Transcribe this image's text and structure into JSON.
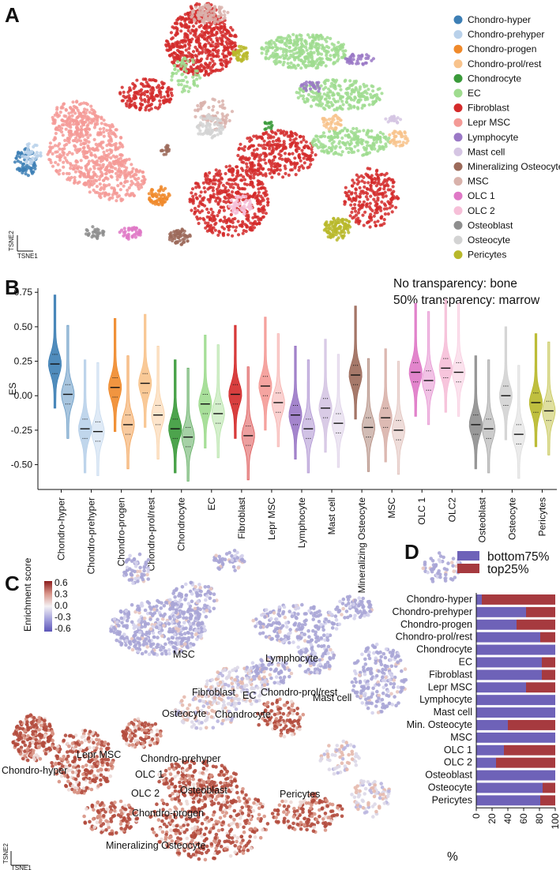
{
  "panels": {
    "a": "A",
    "b": "B",
    "c": "C",
    "d": "D"
  },
  "tsne_axes": {
    "y": "TSNE2",
    "x": "TSNE1"
  },
  "panel_a": {
    "legend": [
      {
        "name": "Chondro-hyper",
        "color": "#3d7fb5"
      },
      {
        "name": "Chondro-prehyper",
        "color": "#b9d1ea"
      },
      {
        "name": "Chondro-progen",
        "color": "#f08a2b"
      },
      {
        "name": "Chondro-prol/rest",
        "color": "#f8c38c"
      },
      {
        "name": "Chondrocyte",
        "color": "#3a9a3a"
      },
      {
        "name": "EC",
        "color": "#9fdc8f"
      },
      {
        "name": "Fibroblast",
        "color": "#d42a2a"
      },
      {
        "name": "Lepr MSC",
        "color": "#f49a96"
      },
      {
        "name": "Lymphocyte",
        "color": "#9a78c6"
      },
      {
        "name": "Mast cell",
        "color": "#d5c5e3"
      },
      {
        "name": "Mineralizing Osteocyte",
        "color": "#9c6a5a"
      },
      {
        "name": "MSC",
        "color": "#d9b2ab"
      },
      {
        "name": "OLC 1",
        "color": "#df78c6"
      },
      {
        "name": "OLC 2",
        "color": "#f6bfd8"
      },
      {
        "name": "Osteoblast",
        "color": "#8e8e8e"
      },
      {
        "name": "Osteocyte",
        "color": "#d3d3d3"
      },
      {
        "name": "Pericytes",
        "color": "#b8b82a"
      }
    ]
  },
  "panel_b": {
    "annotation_line1": "No transparency: bone",
    "annotation_line2": "50% transparency: marrow"
  },
  "panel_c": {
    "colorbar_title": "Enrichment score",
    "colorbar_ticks": [
      "0.6",
      "0.3",
      "0.0",
      "-0.3",
      "-0.6"
    ],
    "cluster_labels": [
      "MSC",
      "Lymphocyte",
      "Mast cell",
      "Fibroblast",
      "EC",
      "Chondro-prol/rest",
      "Osteocyte",
      "Chondrocyte",
      "Chondro-hyper",
      "Lepr MSC",
      "Chondro-prehyper",
      "OLC 1",
      "Osteoblast",
      "OLC 2",
      "Chondro-progen",
      "Pericytes",
      "Mineralizing Osteocyte"
    ]
  },
  "chart_data": [
    {
      "type": "violin",
      "title": "",
      "xlabel": "",
      "ylabel": "ES",
      "ylim": [
        -0.68,
        0.78
      ],
      "yticks": [
        "0.75",
        "0.50",
        "0.25",
        "0.00",
        "-0.25",
        "-0.50"
      ],
      "categories": [
        "Chondro-hyper",
        "Chondro-prehyper",
        "Chondro-progen",
        "Chondro-prol/rest",
        "Chondrocyte",
        "EC",
        "Fibroblast",
        "Lepr MSC",
        "Lymphocyte",
        "Mast cell",
        "Mineralizing Osteocyte",
        "MSC",
        "OLC 1",
        "OLC2",
        "Osteoblast",
        "Osteocyte",
        "Pericytes"
      ],
      "series": [
        {
          "name": "bone",
          "medians": [
            0.23,
            -0.24,
            0.06,
            0.09,
            -0.24,
            -0.06,
            0.01,
            0.07,
            -0.14,
            -0.09,
            0.15,
            -0.16,
            0.17,
            0.2,
            -0.21,
            0.0,
            -0.05
          ]
        },
        {
          "name": "marrow",
          "medians": [
            0.01,
            -0.26,
            -0.21,
            -0.14,
            -0.3,
            -0.13,
            -0.29,
            -0.05,
            -0.24,
            -0.2,
            -0.23,
            -0.25,
            0.11,
            0.17,
            -0.24,
            -0.28,
            -0.11
          ]
        }
      ]
    },
    {
      "type": "bar",
      "stacked": true,
      "horizontal": true,
      "title": "",
      "xlabel": "%",
      "xlim": [
        0,
        100
      ],
      "xticks": [
        "0",
        "20",
        "40",
        "60",
        "80",
        "100"
      ],
      "categories": [
        "Chondro-hyper",
        "Chondro-prehyper",
        "Chondro-progen",
        "Chondro-prol/rest",
        "Chondrocyte",
        "EC",
        "Fibroblast",
        "Lepr MSC",
        "Lymphocyte",
        "Mast cell",
        "Min. Osteocyte",
        "MSC",
        "OLC 1",
        "OLC 2",
        "Osteoblast",
        "Osteocyte",
        "Pericytes"
      ],
      "series": [
        {
          "name": "bottom75%",
          "color": "#6e62b8",
          "values": [
            7,
            63,
            51,
            81,
            100,
            83,
            83,
            63,
            100,
            100,
            40,
            100,
            35,
            25,
            100,
            84,
            81
          ]
        },
        {
          "name": "top25%",
          "color": "#a63a3f",
          "values": [
            93,
            37,
            49,
            19,
            0,
            17,
            17,
            37,
            0,
            0,
            60,
            0,
            65,
            75,
            0,
            16,
            19
          ]
        }
      ]
    }
  ]
}
